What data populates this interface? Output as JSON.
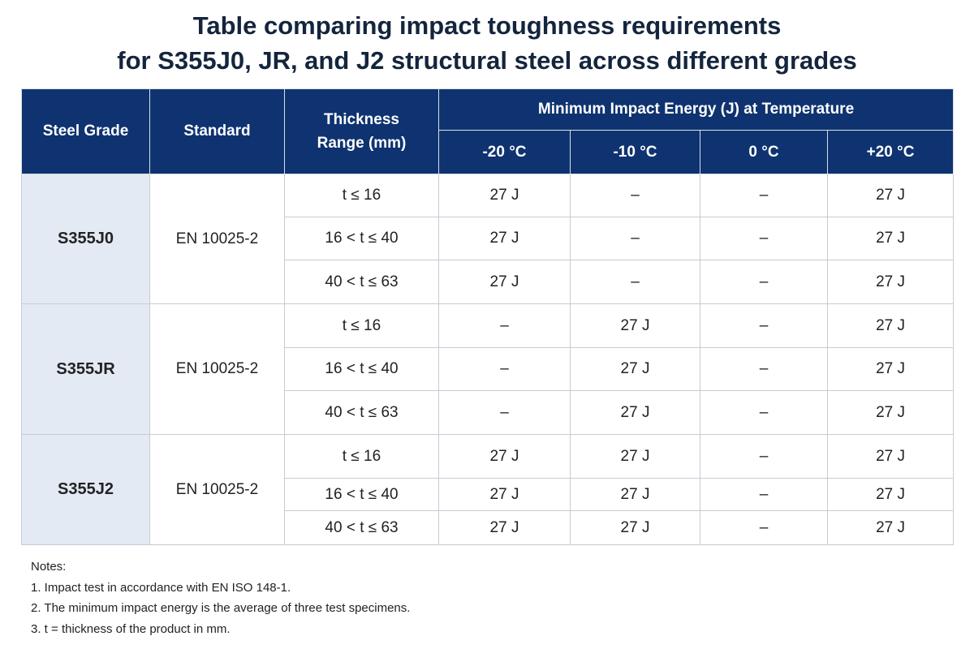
{
  "title": {
    "line1": "Table comparing impact toughness requirements",
    "line2": "for S355J0, JR, and J2 structural steel across different grades"
  },
  "table": {
    "headers": {
      "steel_grade": "Steel Grade",
      "standard": "Standard",
      "thickness_line1": "Thickness",
      "thickness_line2": "Range (mm)",
      "impact_group": "Minimum Impact Energy (J) at Temperature",
      "temps": [
        "-20 °C",
        "-10 °C",
        "0 °C",
        "+20 °C"
      ]
    },
    "groups": [
      {
        "grade": "S355J0",
        "standard": "EN 10025-2",
        "rows": [
          {
            "thickness": "t ≤ 16",
            "values": [
              "27 J",
              "–",
              "–",
              "27 J"
            ]
          },
          {
            "thickness": "16 < t ≤ 40",
            "values": [
              "27 J",
              "–",
              "–",
              "27 J"
            ]
          },
          {
            "thickness": "40 < t ≤ 63",
            "values": [
              "27 J",
              "–",
              "–",
              "27 J"
            ]
          }
        ]
      },
      {
        "grade": "S355JR",
        "standard": "EN 10025-2",
        "rows": [
          {
            "thickness": "t ≤ 16",
            "values": [
              "–",
              "27 J",
              "–",
              "27 J"
            ]
          },
          {
            "thickness": "16 < t ≤ 40",
            "values": [
              "–",
              "27 J",
              "–",
              "27 J"
            ]
          },
          {
            "thickness": "40 < t ≤ 63",
            "values": [
              "–",
              "27 J",
              "–",
              "27 J"
            ]
          }
        ]
      },
      {
        "grade": "S355J2",
        "standard": "EN 10025-2",
        "rows": [
          {
            "thickness": "t ≤ 16",
            "values": [
              "27 J",
              "27 J",
              "–",
              "27 J"
            ]
          },
          {
            "thickness": "16 < t ≤ 40",
            "values": [
              "27 J",
              "27 J",
              "–",
              "27 J"
            ]
          },
          {
            "thickness": "40 < t ≤ 63",
            "values": [
              "27 J",
              "27 J",
              "–",
              "27 J"
            ]
          }
        ]
      }
    ]
  },
  "notes": {
    "heading": "Notes:",
    "items": [
      "1. Impact test in accordance with EN ISO 148-1.",
      "2. The minimum impact energy is the average of three test specimens.",
      "3. t = thickness of the product in mm."
    ]
  },
  "colors": {
    "header_bg": "#0f3370",
    "title_text": "#14253d",
    "grade_cell_bg": "#e3eaf4",
    "border": "#c6ccd4"
  }
}
